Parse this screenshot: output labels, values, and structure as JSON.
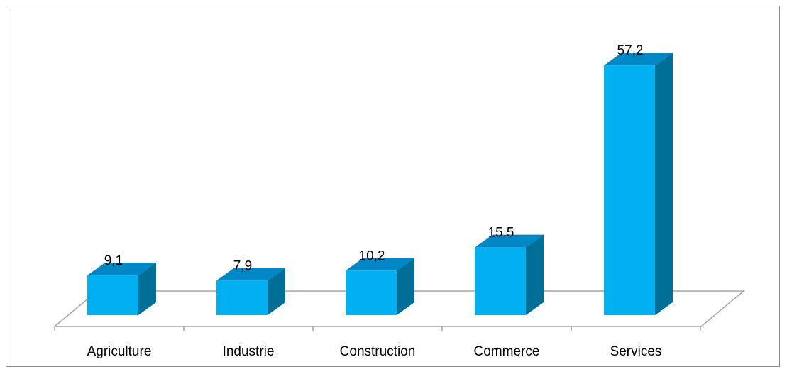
{
  "chart_data": {
    "type": "bar",
    "style": "3d-column",
    "categories": [
      "Agriculture",
      "Industrie",
      "Construction",
      "Commerce",
      "Services"
    ],
    "values": [
      9.1,
      7.9,
      10.2,
      15.5,
      57.2
    ],
    "data_labels": [
      "9,1",
      "7,9",
      "10,2",
      "15,5",
      "57,2"
    ],
    "title": "",
    "xlabel": "",
    "ylabel": "",
    "ylim": [
      0,
      60
    ],
    "grid": false,
    "legend": "none",
    "colors": {
      "bar_front": "#00b0f0",
      "bar_top": "#0088c6",
      "bar_side": "#006f97",
      "floor_line": "#a6a6a6"
    }
  }
}
